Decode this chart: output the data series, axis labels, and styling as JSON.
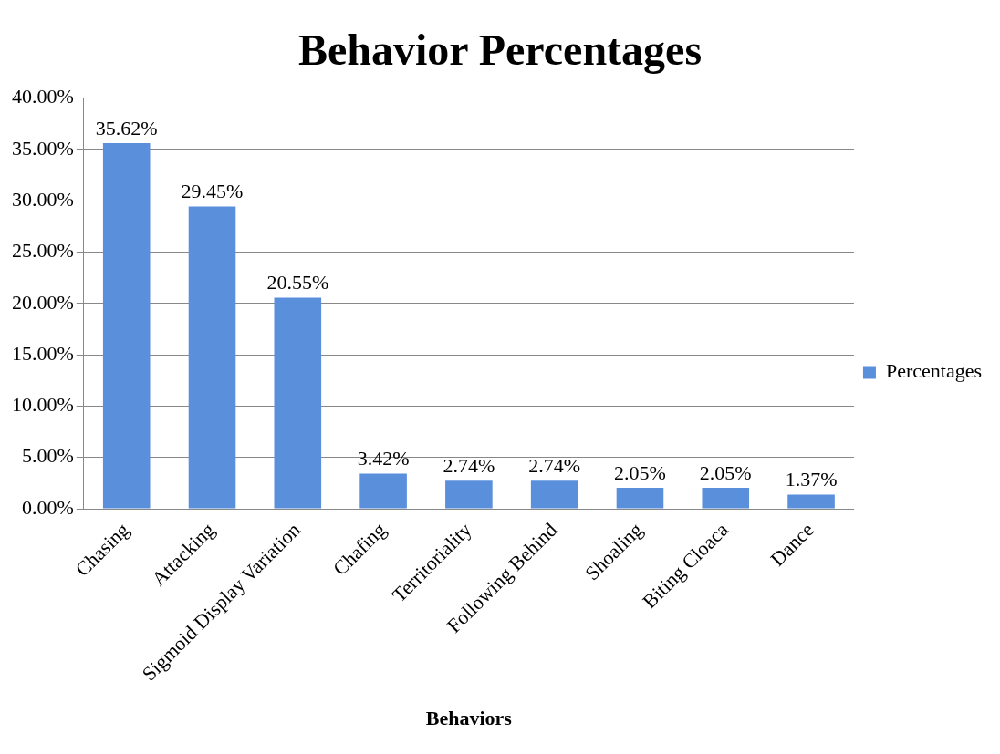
{
  "chart_data": {
    "type": "bar",
    "title": "Behavior Percentages",
    "xlabel": "Behaviors",
    "categories": [
      "Chasing",
      "Attacking",
      "Sigmoid Display Variation",
      "Chafing",
      "Territoriality",
      "Following Behind",
      "Shoaling",
      "Biting Cloaca",
      "Dance"
    ],
    "series": [
      {
        "name": "Percentages",
        "color": "#5a8fdc",
        "values": [
          35.62,
          29.45,
          20.55,
          3.42,
          2.74,
          2.74,
          2.05,
          2.05,
          1.37
        ],
        "value_labels": [
          "35.62%",
          "29.45%",
          "20.55%",
          "3.42%",
          "2.74%",
          "2.74%",
          "2.05%",
          "2.05%",
          "1.37%"
        ]
      }
    ],
    "ylim": [
      0,
      40
    ],
    "yticks": [
      {
        "value": 0,
        "label": "0.00%"
      },
      {
        "value": 5,
        "label": "5.00%"
      },
      {
        "value": 10,
        "label": "10.00%"
      },
      {
        "value": 15,
        "label": "15.00%"
      },
      {
        "value": 20,
        "label": "20.00%"
      },
      {
        "value": 25,
        "label": "25.00%"
      },
      {
        "value": 30,
        "label": "30.00%"
      },
      {
        "value": 35,
        "label": "35.00%"
      },
      {
        "value": 40,
        "label": "40.00%"
      }
    ],
    "grid": "y",
    "legend": "right"
  }
}
